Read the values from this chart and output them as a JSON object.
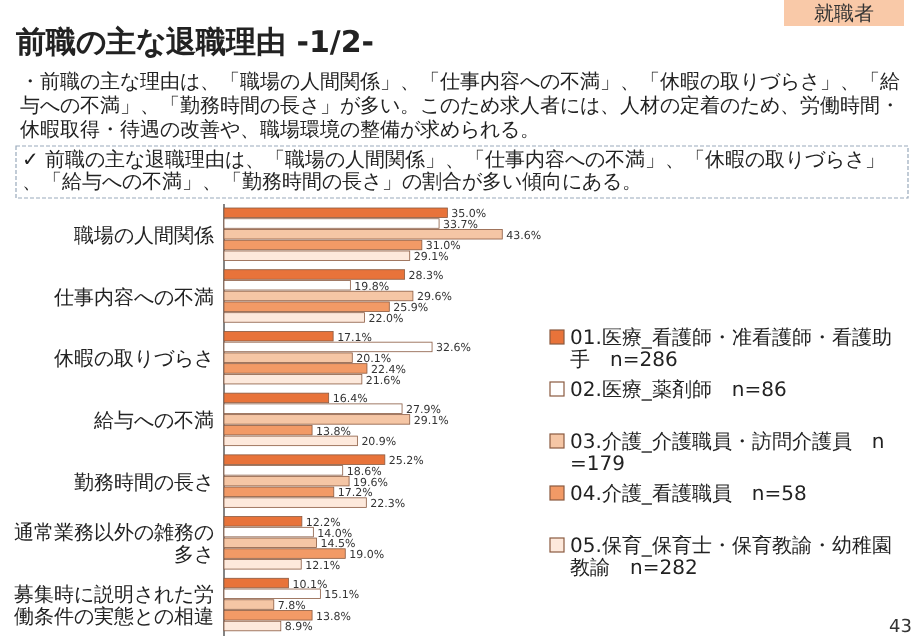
{
  "chart_data": {
    "type": "bar",
    "orientation": "horizontal",
    "title": "前職の主な退職理由 -1/2-",
    "annotations": [
      "就職者",
      "・前職の主な理由は、「職場の人間関係」、「仕事内容への不満」、「休暇の取りづらさ」、「給与への不満」、「勤務時間の長さ」が多い。このため求人者には、人材の定着のため、労働時間・休暇取得・待遇の改善や、職場環境の整備が求められる。",
      "✓ 前職の主な退職理由は、「職場の人間関係」、「仕事内容への不満」、「休暇の取りづらさ」、「給与への不満」、「勤務時間の長さ」の割合が多い傾向にある。",
      "43"
    ],
    "categories": [
      "職場の人間関係",
      "仕事内容への不満",
      "休暇の取りづらさ",
      "給与への不満",
      "勤務時間の長さ",
      "通常業務以外の雑務の多さ",
      "募集時に説明された労働条件の実態との相違"
    ],
    "series": [
      {
        "name": "01.医療_看護師・准看護師・看護助手　n=286",
        "color": "#e8733a",
        "values": [
          35.0,
          28.3,
          17.1,
          16.4,
          25.2,
          12.2,
          10.1
        ],
        "value_labels": [
          "35.0%",
          "28.3%",
          "17.1%",
          "16.4%",
          "25.2%",
          "12.2%",
          "10.1%"
        ]
      },
      {
        "name": "02.医療_薬剤師　n=86",
        "color": "#ffffff",
        "values": [
          33.7,
          19.8,
          32.6,
          27.9,
          18.6,
          14.0,
          15.1
        ],
        "value_labels": [
          "33.7%",
          "19.8%",
          "32.6%",
          "27.9%",
          "18.6%",
          "14.0%",
          "15.1%"
        ]
      },
      {
        "name": "03.介護_介護職員・訪問介護員　n=179",
        "color": "#f5c6a5",
        "values": [
          43.6,
          29.6,
          20.1,
          29.1,
          19.6,
          14.5,
          7.8
        ],
        "value_labels": [
          "43.6%",
          "29.6%",
          "20.1%",
          "29.1%",
          "19.6%",
          "14.5%",
          "7.8%"
        ]
      },
      {
        "name": "04.介護_看護職員　n=58",
        "color": "#f29a66",
        "values": [
          31.0,
          25.9,
          22.4,
          13.8,
          17.2,
          19.0,
          13.8
        ],
        "value_labels": [
          "31.0%",
          "25.9%",
          "22.4%",
          "13.8%",
          "17.2%",
          "19.0%",
          "13.8%"
        ]
      },
      {
        "name": "05.保育_保育士・保育教諭・幼稚園教諭　n=282",
        "color": "#fde9dc",
        "values": [
          29.1,
          22.0,
          21.6,
          20.9,
          22.3,
          12.1,
          8.9
        ],
        "value_labels": [
          "29.1%",
          "22.0%",
          "21.6%",
          "20.9%",
          "22.3%",
          "12.1%",
          "8.9%"
        ]
      }
    ],
    "legend": "right"
  }
}
